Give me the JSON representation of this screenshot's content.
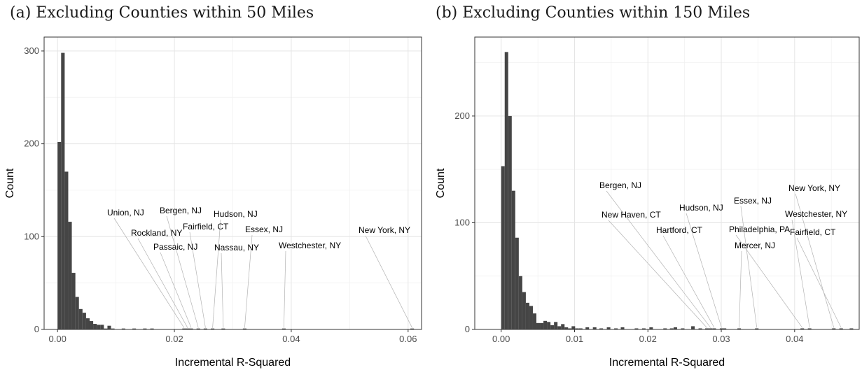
{
  "chart_data": [
    {
      "type": "bar",
      "title": "(a) Excluding Counties within 50 Miles",
      "xlabel": "Incremental R-Squared",
      "ylabel": "Count",
      "xlim": [
        -0.0023,
        0.0623
      ],
      "ylim": [
        0,
        315
      ],
      "xticks": [
        0.0,
        0.02,
        0.04,
        0.06
      ],
      "xtick_labels": [
        "0.00",
        "0.02",
        "0.04",
        "0.06"
      ],
      "yticks": [
        0,
        100,
        200,
        300
      ],
      "ytick_labels": [
        "0",
        "100",
        "200",
        "300"
      ],
      "grid": true,
      "bin_width": 0.00061,
      "bins": [
        [
          0.0,
          202
        ],
        [
          0.00061,
          298
        ],
        [
          0.00122,
          170
        ],
        [
          0.00183,
          116
        ],
        [
          0.00244,
          61
        ],
        [
          0.00305,
          35
        ],
        [
          0.00366,
          22
        ],
        [
          0.00427,
          18
        ],
        [
          0.00488,
          12
        ],
        [
          0.00549,
          9
        ],
        [
          0.0061,
          6
        ],
        [
          0.00671,
          5
        ],
        [
          0.00732,
          5
        ],
        [
          0.00793,
          1
        ],
        [
          0.00854,
          4
        ],
        [
          0.00915,
          1
        ],
        [
          0.01098,
          1
        ],
        [
          0.01281,
          1
        ],
        [
          0.01464,
          1
        ],
        [
          0.01586,
          1
        ],
        [
          0.02135,
          1
        ],
        [
          0.02196,
          1
        ],
        [
          0.02257,
          1
        ],
        [
          0.02379,
          1
        ],
        [
          0.02501,
          1
        ],
        [
          0.02623,
          1
        ],
        [
          0.02806,
          1
        ],
        [
          0.03172,
          1
        ],
        [
          0.03843,
          1
        ],
        [
          0.06039,
          1
        ]
      ],
      "annotations": [
        {
          "label": "Union, NJ",
          "x": 0.02135
        },
        {
          "label": "Bergen, NJ",
          "x": 0.02379
        },
        {
          "label": "Hudson, NJ",
          "x": 0.02623
        },
        {
          "label": "Rockland, NY",
          "x": 0.02196
        },
        {
          "label": "Fairfield, CT",
          "x": 0.02501
        },
        {
          "label": "Essex, NJ",
          "x": 0.03172
        },
        {
          "label": "New York, NY",
          "x": 0.06039
        },
        {
          "label": "Passaic, NJ",
          "x": 0.02257
        },
        {
          "label": "Nassau, NY",
          "x": 0.02806
        },
        {
          "label": "Westchester, NY",
          "x": 0.03843
        }
      ]
    },
    {
      "type": "bar",
      "title": "(b) Excluding Counties within 150 Miles",
      "xlabel": "Incremental R-Squared",
      "ylabel": "Count",
      "xlim": [
        -0.0036,
        0.0488
      ],
      "ylim": [
        0,
        274
      ],
      "xticks": [
        0.0,
        0.01,
        0.02,
        0.03,
        0.04
      ],
      "xtick_labels": [
        "0.00",
        "0.01",
        "0.02",
        "0.03",
        "0.04"
      ],
      "yticks": [
        0,
        100,
        200
      ],
      "ytick_labels": [
        "0",
        "100",
        "200"
      ],
      "grid": true,
      "bin_width": 0.00048,
      "bins": [
        [
          0.0,
          153
        ],
        [
          0.00048,
          260
        ],
        [
          0.00096,
          200
        ],
        [
          0.00144,
          130
        ],
        [
          0.00192,
          86
        ],
        [
          0.0024,
          50
        ],
        [
          0.00288,
          35
        ],
        [
          0.00336,
          25
        ],
        [
          0.00384,
          22
        ],
        [
          0.00432,
          15
        ],
        [
          0.0048,
          6
        ],
        [
          0.00528,
          6
        ],
        [
          0.00576,
          8
        ],
        [
          0.00624,
          7
        ],
        [
          0.00672,
          4
        ],
        [
          0.0072,
          7
        ],
        [
          0.00768,
          3
        ],
        [
          0.00816,
          5
        ],
        [
          0.00864,
          2
        ],
        [
          0.00912,
          1
        ],
        [
          0.0096,
          3
        ],
        [
          0.0101,
          1
        ],
        [
          0.0106,
          1
        ],
        [
          0.0115,
          2
        ],
        [
          0.0125,
          2
        ],
        [
          0.0134,
          1
        ],
        [
          0.0144,
          2
        ],
        [
          0.0154,
          1
        ],
        [
          0.0163,
          2
        ],
        [
          0.0182,
          1
        ],
        [
          0.0192,
          1
        ],
        [
          0.0202,
          2
        ],
        [
          0.0221,
          1
        ],
        [
          0.023,
          1
        ],
        [
          0.0235,
          2
        ],
        [
          0.0245,
          1
        ],
        [
          0.0259,
          3
        ],
        [
          0.0269,
          1
        ],
        [
          0.0278,
          1
        ],
        [
          0.0283,
          1
        ],
        [
          0.0288,
          1
        ],
        [
          0.0298,
          1
        ],
        [
          0.0302,
          1
        ],
        [
          0.0322,
          1
        ],
        [
          0.0346,
          1
        ],
        [
          0.0408,
          1
        ],
        [
          0.0418,
          1
        ],
        [
          0.0451,
          1
        ],
        [
          0.0461,
          1
        ],
        [
          0.0475,
          1
        ]
      ],
      "annotations": [
        {
          "label": "Bergen, NJ",
          "x": 0.0283
        },
        {
          "label": "Essex, NJ",
          "x": 0.0346
        },
        {
          "label": "New York, NY",
          "x": 0.0451
        },
        {
          "label": "Hudson, NJ",
          "x": 0.0298
        },
        {
          "label": "New Haven, CT",
          "x": 0.0278
        },
        {
          "label": "Westchester, NY",
          "x": 0.0418
        },
        {
          "label": "Hartford, CT",
          "x": 0.0288
        },
        {
          "label": "Philadelphia, PA",
          "x": 0.0408
        },
        {
          "label": "Fairfield, CT",
          "x": 0.0461
        },
        {
          "label": "Mercer, NJ",
          "x": 0.0322
        }
      ]
    }
  ]
}
